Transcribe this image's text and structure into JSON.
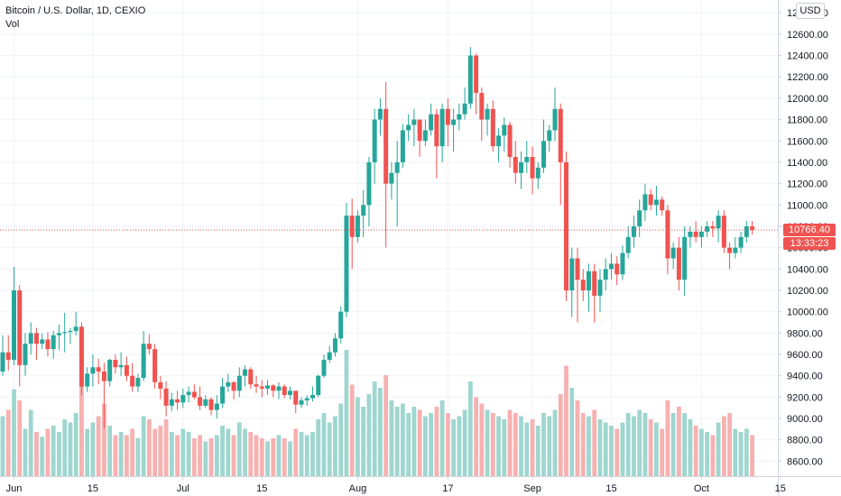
{
  "chart_data": {
    "type": "candlestick",
    "title": "Bitcoin / U.S. Dollar, 1D, CEXIO",
    "volume_label": "Vol",
    "currency_button": "USD",
    "last_price_label": "10766.40",
    "countdown_label": "13:33:23",
    "last_price": 10766.4,
    "colors": {
      "up": "#26a69a",
      "down": "#ef5350",
      "up_vol": "#9fd6cf",
      "down_vol": "#f6b1b0",
      "last_line": "#ef5350"
    },
    "ylim": [
      8460,
      12920
    ],
    "y_ticks": [
      {
        "v": 8600,
        "label": "8600.00"
      },
      {
        "v": 8800,
        "label": "8800.00"
      },
      {
        "v": 9000,
        "label": "9000.00"
      },
      {
        "v": 9200,
        "label": "9200.00"
      },
      {
        "v": 9400,
        "label": "9400.00"
      },
      {
        "v": 9600,
        "label": "9600.00"
      },
      {
        "v": 9800,
        "label": "9800.00"
      },
      {
        "v": 10000,
        "label": "10000.00"
      },
      {
        "v": 10200,
        "label": "10200.00"
      },
      {
        "v": 10400,
        "label": "10400.00"
      },
      {
        "v": 10600,
        "label": "10600.00"
      },
      {
        "v": 10800,
        "label": "10800.00"
      },
      {
        "v": 11000,
        "label": "11000.00"
      },
      {
        "v": 11200,
        "label": "11200.00"
      },
      {
        "v": 11400,
        "label": "11400.00"
      },
      {
        "v": 11600,
        "label": "11600.00"
      },
      {
        "v": 11800,
        "label": "11800.00"
      },
      {
        "v": 12000,
        "label": "12000.00"
      },
      {
        "v": 12200,
        "label": "12200.00"
      },
      {
        "v": 12400,
        "label": "12400.00"
      },
      {
        "v": 12600,
        "label": "12600.00"
      },
      {
        "v": 12800,
        "label": "12800.00"
      }
    ],
    "x_ticks": [
      {
        "date": "2020-06-01",
        "label": "Jun"
      },
      {
        "date": "2020-06-15",
        "label": "15"
      },
      {
        "date": "2020-07-01",
        "label": "Jul"
      },
      {
        "date": "2020-07-15",
        "label": "15"
      },
      {
        "date": "2020-08-01",
        "label": "Aug"
      },
      {
        "date": "2020-08-17",
        "label": "17"
      },
      {
        "date": "2020-09-01",
        "label": "Sep"
      },
      {
        "date": "2020-09-15",
        "label": "15"
      },
      {
        "date": "2020-10-01",
        "label": "Oct"
      },
      {
        "date": "2020-10-15",
        "label": "15"
      }
    ],
    "ohlc_start": "2020-05-30",
    "ohlc": [
      [
        9440,
        9780,
        9400,
        9620,
        38
      ],
      [
        9620,
        9780,
        9450,
        9550,
        42
      ],
      [
        9550,
        10420,
        9500,
        10200,
        55
      ],
      [
        10200,
        10250,
        9300,
        9500,
        48
      ],
      [
        9500,
        9800,
        9400,
        9700,
        30
      ],
      [
        9700,
        9900,
        9600,
        9800,
        42
      ],
      [
        9800,
        9850,
        9550,
        9700,
        28
      ],
      [
        9700,
        9800,
        9650,
        9740,
        25
      ],
      [
        9740,
        9810,
        9580,
        9650,
        30
      ],
      [
        9650,
        9820,
        9560,
        9780,
        32
      ],
      [
        9780,
        9880,
        9640,
        9800,
        28
      ],
      [
        9800,
        9990,
        9620,
        9810,
        36
      ],
      [
        9810,
        9850,
        9700,
        9820,
        34
      ],
      [
        9820,
        10000,
        9780,
        9860,
        40
      ],
      [
        9860,
        9900,
        9220,
        9300,
        62
      ],
      [
        9300,
        9480,
        9250,
        9420,
        30
      ],
      [
        9420,
        9600,
        9300,
        9480,
        34
      ],
      [
        9480,
        9560,
        9320,
        9440,
        38
      ],
      [
        9440,
        9520,
        8910,
        9350,
        46
      ],
      [
        9350,
        9560,
        9300,
        9550,
        32
      ],
      [
        9550,
        9600,
        9420,
        9480,
        26
      ],
      [
        9480,
        9620,
        9400,
        9500,
        28
      ],
      [
        9500,
        9580,
        9350,
        9400,
        26
      ],
      [
        9400,
        9520,
        9250,
        9300,
        30
      ],
      [
        9300,
        9420,
        9250,
        9380,
        24
      ],
      [
        9380,
        9820,
        9350,
        9700,
        38
      ],
      [
        9700,
        9790,
        9600,
        9650,
        36
      ],
      [
        9650,
        9700,
        9280,
        9340,
        30
      ],
      [
        9340,
        9400,
        9180,
        9280,
        32
      ],
      [
        9280,
        9350,
        9020,
        9120,
        36
      ],
      [
        9120,
        9240,
        9070,
        9180,
        28
      ],
      [
        9180,
        9260,
        9080,
        9150,
        26
      ],
      [
        9150,
        9280,
        9100,
        9220,
        30
      ],
      [
        9220,
        9300,
        9150,
        9250,
        28
      ],
      [
        9250,
        9320,
        9180,
        9200,
        24
      ],
      [
        9200,
        9300,
        9080,
        9120,
        26
      ],
      [
        9120,
        9220,
        9100,
        9180,
        22
      ],
      [
        9180,
        9200,
        9030,
        9080,
        24
      ],
      [
        9080,
        9220,
        9000,
        9140,
        26
      ],
      [
        9140,
        9380,
        9100,
        9300,
        32
      ],
      [
        9300,
        9420,
        9250,
        9340,
        30
      ],
      [
        9340,
        9350,
        9180,
        9260,
        26
      ],
      [
        9260,
        9480,
        9200,
        9400,
        34
      ],
      [
        9400,
        9500,
        9300,
        9460,
        30
      ],
      [
        9460,
        9480,
        9280,
        9320,
        28
      ],
      [
        9320,
        9400,
        9240,
        9300,
        26
      ],
      [
        9300,
        9360,
        9200,
        9280,
        24
      ],
      [
        9280,
        9360,
        9220,
        9310,
        22
      ],
      [
        9310,
        9320,
        9200,
        9260,
        24
      ],
      [
        9260,
        9340,
        9180,
        9300,
        26
      ],
      [
        9300,
        9320,
        9190,
        9220,
        24
      ],
      [
        9220,
        9300,
        9180,
        9260,
        22
      ],
      [
        9260,
        9250,
        9050,
        9130,
        30
      ],
      [
        9130,
        9200,
        9100,
        9170,
        28
      ],
      [
        9170,
        9220,
        9120,
        9190,
        26
      ],
      [
        9190,
        9300,
        9160,
        9220,
        28
      ],
      [
        9220,
        9410,
        9200,
        9400,
        36
      ],
      [
        9400,
        9600,
        9380,
        9550,
        40
      ],
      [
        9550,
        9680,
        9520,
        9620,
        34
      ],
      [
        9620,
        9800,
        9580,
        9750,
        38
      ],
      [
        9750,
        10050,
        9700,
        10000,
        46
      ],
      [
        10000,
        11020,
        9950,
        10900,
        80
      ],
      [
        10900,
        11060,
        10400,
        10700,
        58
      ],
      [
        10700,
        10950,
        10650,
        10900,
        50
      ],
      [
        10900,
        11140,
        10700,
        11000,
        44
      ],
      [
        11000,
        11450,
        10800,
        11400,
        52
      ],
      [
        11400,
        11900,
        11200,
        11800,
        60
      ],
      [
        11800,
        12000,
        11650,
        11900,
        56
      ],
      [
        11900,
        12150,
        10600,
        11200,
        64
      ],
      [
        11200,
        11400,
        11050,
        11300,
        48
      ],
      [
        11300,
        11600,
        10800,
        11400,
        44
      ],
      [
        11400,
        11760,
        11350,
        11700,
        46
      ],
      [
        11700,
        11850,
        11600,
        11750,
        40
      ],
      [
        11750,
        11900,
        11550,
        11800,
        44
      ],
      [
        11800,
        11800,
        11450,
        11600,
        42
      ],
      [
        11600,
        11800,
        11550,
        11700,
        38
      ],
      [
        11700,
        11950,
        11650,
        11850,
        40
      ],
      [
        11850,
        11900,
        11250,
        11550,
        44
      ],
      [
        11550,
        11950,
        11400,
        11900,
        48
      ],
      [
        11900,
        12000,
        11550,
        11750,
        40
      ],
      [
        11750,
        11900,
        11500,
        11800,
        36
      ],
      [
        11800,
        11950,
        11700,
        11850,
        38
      ],
      [
        11850,
        12100,
        11800,
        11950,
        42
      ],
      [
        11950,
        12480,
        11900,
        12400,
        60
      ],
      [
        12400,
        12420,
        11850,
        12050,
        50
      ],
      [
        12050,
        12100,
        11600,
        11800,
        46
      ],
      [
        11800,
        11950,
        11650,
        11900,
        42
      ],
      [
        11900,
        11980,
        11500,
        11550,
        40
      ],
      [
        11550,
        11720,
        11400,
        11650,
        38
      ],
      [
        11650,
        11820,
        11500,
        11750,
        36
      ],
      [
        11750,
        11780,
        11350,
        11450,
        42
      ],
      [
        11450,
        11600,
        11200,
        11300,
        40
      ],
      [
        11300,
        11500,
        11150,
        11400,
        38
      ],
      [
        11400,
        11600,
        11300,
        11450,
        34
      ],
      [
        11450,
        11550,
        11100,
        11250,
        36
      ],
      [
        11250,
        11400,
        11150,
        11350,
        32
      ],
      [
        11350,
        11800,
        11300,
        11600,
        40
      ],
      [
        11600,
        11750,
        11500,
        11700,
        38
      ],
      [
        11700,
        12100,
        11600,
        11900,
        42
      ],
      [
        11900,
        11950,
        11000,
        11400,
        52
      ],
      [
        11400,
        11500,
        10100,
        10200,
        70
      ],
      [
        10200,
        10600,
        9950,
        10500,
        56
      ],
      [
        10500,
        10600,
        9900,
        10300,
        48
      ],
      [
        10300,
        10400,
        10100,
        10200,
        40
      ],
      [
        10200,
        10450,
        10000,
        10380,
        38
      ],
      [
        10380,
        10450,
        9900,
        10150,
        42
      ],
      [
        10150,
        10400,
        10000,
        10300,
        36
      ],
      [
        10300,
        10500,
        10200,
        10400,
        34
      ],
      [
        10400,
        10550,
        10300,
        10450,
        32
      ],
      [
        10450,
        10520,
        10250,
        10350,
        30
      ],
      [
        10350,
        10620,
        10300,
        10550,
        34
      ],
      [
        10550,
        10800,
        10500,
        10700,
        40
      ],
      [
        10700,
        10900,
        10600,
        10800,
        38
      ],
      [
        10800,
        11050,
        10700,
        10950,
        42
      ],
      [
        10950,
        11200,
        10850,
        11100,
        40
      ],
      [
        11100,
        11150,
        10950,
        11000,
        36
      ],
      [
        11000,
        11180,
        10900,
        11050,
        34
      ],
      [
        11050,
        11080,
        10900,
        10950,
        30
      ],
      [
        10950,
        11000,
        10350,
        10500,
        48
      ],
      [
        10500,
        10650,
        10400,
        10600,
        40
      ],
      [
        10600,
        10700,
        10200,
        10300,
        44
      ],
      [
        10300,
        10800,
        10150,
        10700,
        40
      ],
      [
        10700,
        10800,
        10600,
        10750,
        36
      ],
      [
        10750,
        10850,
        10650,
        10700,
        32
      ],
      [
        10700,
        10800,
        10600,
        10750,
        30
      ],
      [
        10750,
        10850,
        10700,
        10800,
        28
      ],
      [
        10800,
        10850,
        10700,
        10780,
        26
      ],
      [
        10780,
        10950,
        10650,
        10900,
        34
      ],
      [
        10900,
        10950,
        10550,
        10600,
        38
      ],
      [
        10600,
        10650,
        10400,
        10550,
        40
      ],
      [
        10550,
        10700,
        10500,
        10600,
        30
      ],
      [
        10600,
        10750,
        10550,
        10700,
        28
      ],
      [
        10700,
        10850,
        10650,
        10800,
        30
      ],
      [
        10800,
        10850,
        10720,
        10766,
        26
      ]
    ]
  }
}
